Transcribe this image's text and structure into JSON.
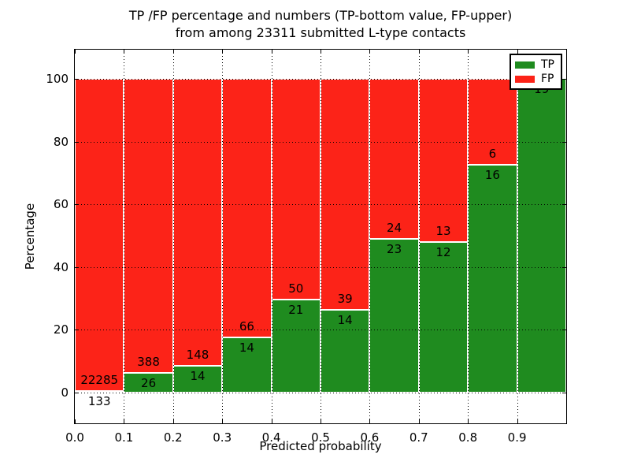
{
  "title": {
    "line1": "TP /FP percentage and numbers (TP-bottom value, FP-upper)",
    "line2": "from among 23311 submitted L-type contacts"
  },
  "colors": {
    "tp_green": "#1f8b1f",
    "fp_red": "#fc2318",
    "grid": "#000000",
    "background": "#ffffff"
  },
  "chart_data": {
    "type": "bar",
    "subtype": "stacked-percentage",
    "title": "TP /FP percentage and numbers (TP-bottom value, FP-upper)\nfrom among 23311 submitted L-type contacts",
    "xlabel": "Predicted probability",
    "ylabel": "Percentage",
    "total_submitted_contacts": 23311,
    "grid": "dotted",
    "xlim": [
      0.0,
      1.0
    ],
    "ylim": [
      -10.3,
      109.3
    ],
    "x_tick_labels": [
      "0.0",
      "0.1",
      "0.2",
      "0.3",
      "0.4",
      "0.5",
      "0.6",
      "0.7",
      "0.8",
      "0.9"
    ],
    "y_tick_values": [
      0,
      20,
      40,
      60,
      80,
      100
    ],
    "y_tick_labels": [
      "0",
      "20",
      "40",
      "60",
      "80",
      "100"
    ],
    "legend": {
      "position": "upper-right",
      "entries": [
        {
          "label": "TP",
          "color": "#1f8b1f"
        },
        {
          "label": "FP",
          "color": "#fc2318"
        }
      ]
    },
    "categories": [
      "0.0-0.1",
      "0.1-0.2",
      "0.2-0.3",
      "0.3-0.4",
      "0.4-0.5",
      "0.5-0.6",
      "0.6-0.7",
      "0.7-0.8",
      "0.8-0.9",
      "0.9-1.0"
    ],
    "series": [
      {
        "name": "TP",
        "counts": [
          133,
          26,
          14,
          14,
          21,
          14,
          23,
          12,
          16,
          19
        ]
      },
      {
        "name": "FP",
        "counts": [
          22285,
          388,
          148,
          66,
          50,
          39,
          24,
          13,
          6,
          0
        ]
      }
    ],
    "tp_percent": [
      0.59,
      6.28,
      8.64,
      17.5,
      29.58,
      26.42,
      48.94,
      48.0,
      72.73,
      100.0
    ],
    "bar_labels": {
      "fp": [
        "22285",
        "388",
        "148",
        "66",
        "50",
        "39",
        "24",
        "13",
        "6",
        ""
      ],
      "tp": [
        "133",
        "26",
        "14",
        "14",
        "21",
        "14",
        "23",
        "12",
        "16",
        "19"
      ]
    }
  }
}
